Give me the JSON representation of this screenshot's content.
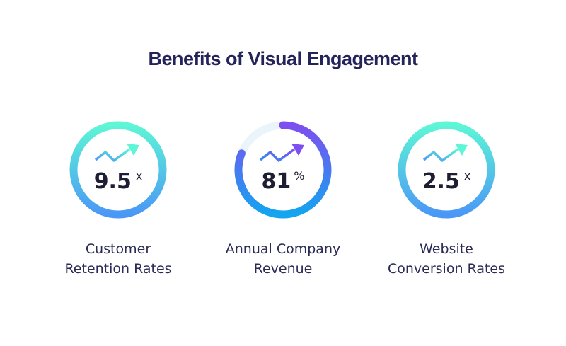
{
  "header": {
    "title": "Benefits of Visual Engagement"
  },
  "stats": [
    {
      "value": "9.5",
      "unit": "x",
      "label": [
        "Customer",
        "Retention Rates"
      ]
    },
    {
      "value": "81",
      "unit": "%",
      "label": [
        "Annual Company",
        "Revenue"
      ]
    },
    {
      "value": "2.5",
      "unit": "x",
      "label": [
        "Website",
        "Conversion Rates"
      ]
    }
  ]
}
